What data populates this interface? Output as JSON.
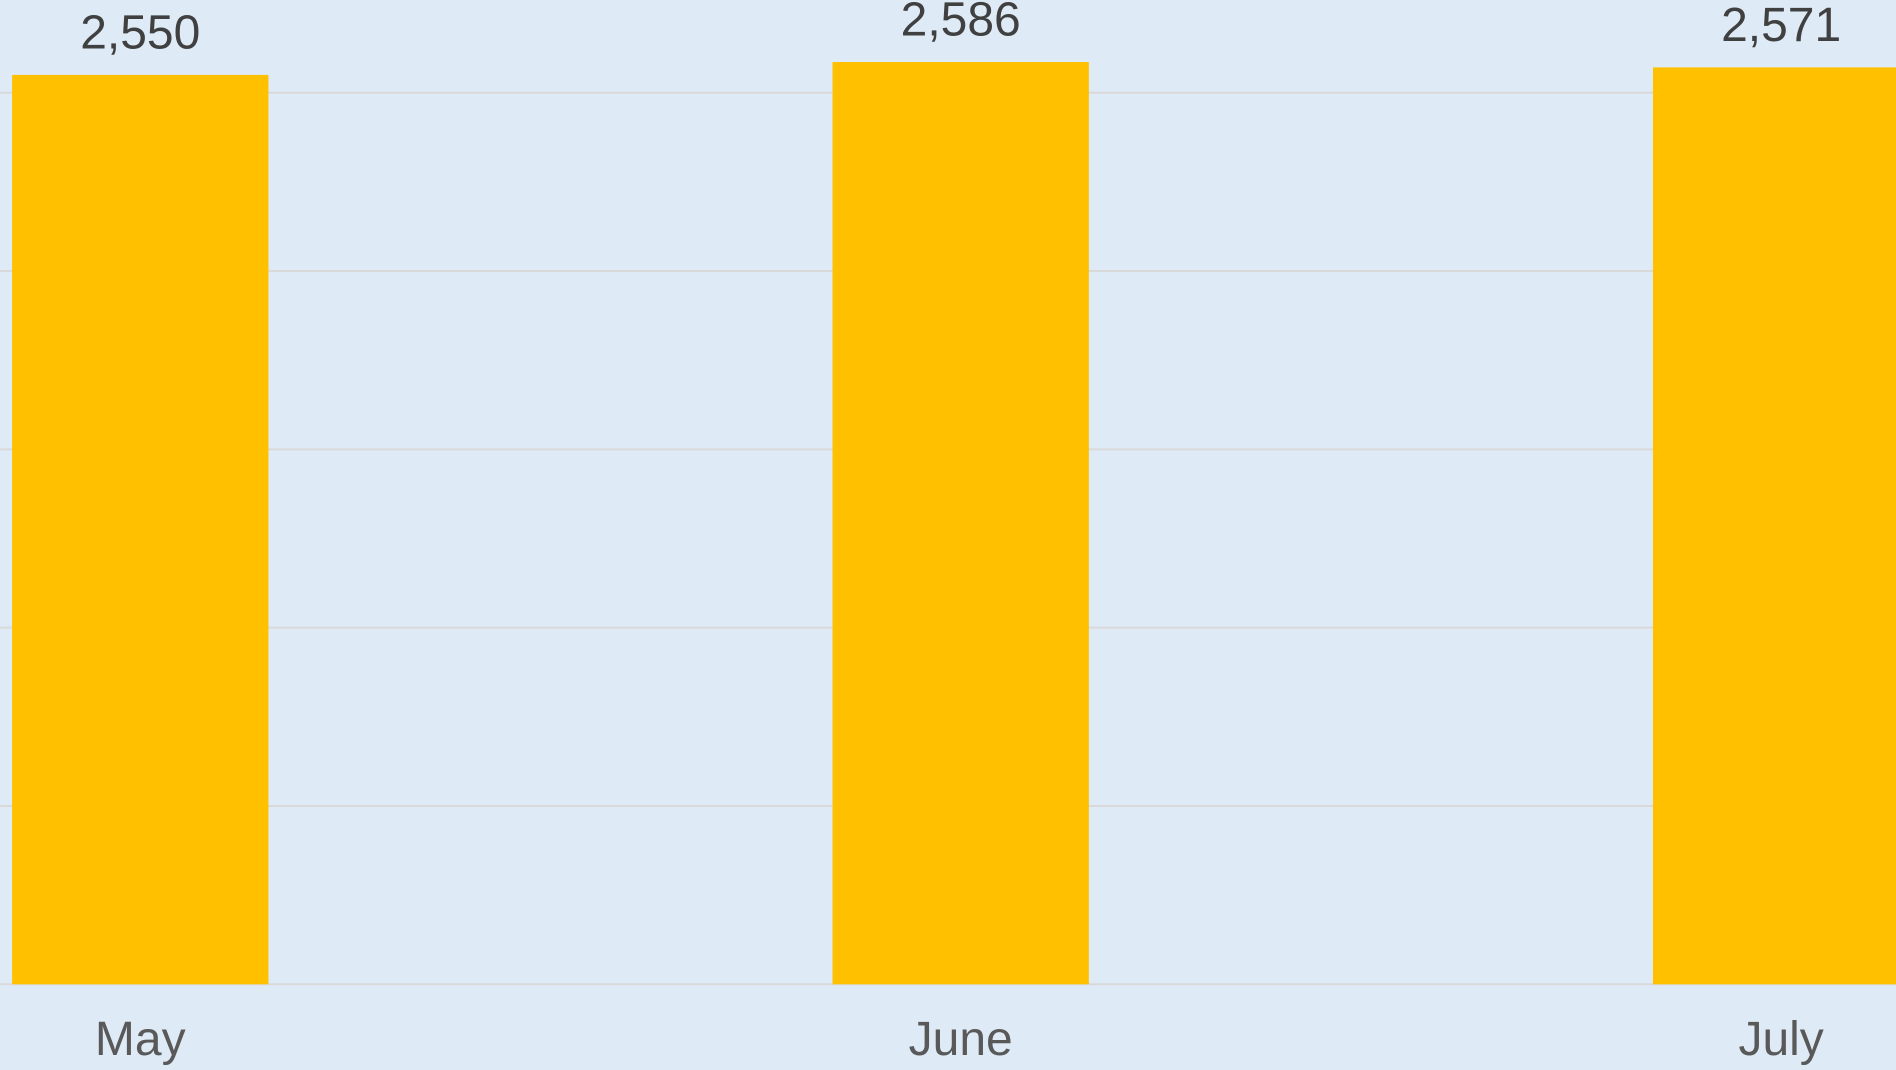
{
  "chart_data": {
    "type": "bar",
    "categories": [
      "May",
      "June",
      "July"
    ],
    "values": [
      2550,
      2586,
      2571
    ],
    "value_labels": [
      "2,550",
      "2,586",
      "2,571"
    ],
    "color": "#ffc000",
    "ylim": [
      0,
      2760
    ],
    "yticks": [
      0,
      500,
      1000,
      1500,
      2000,
      2500
    ],
    "grid": true
  }
}
